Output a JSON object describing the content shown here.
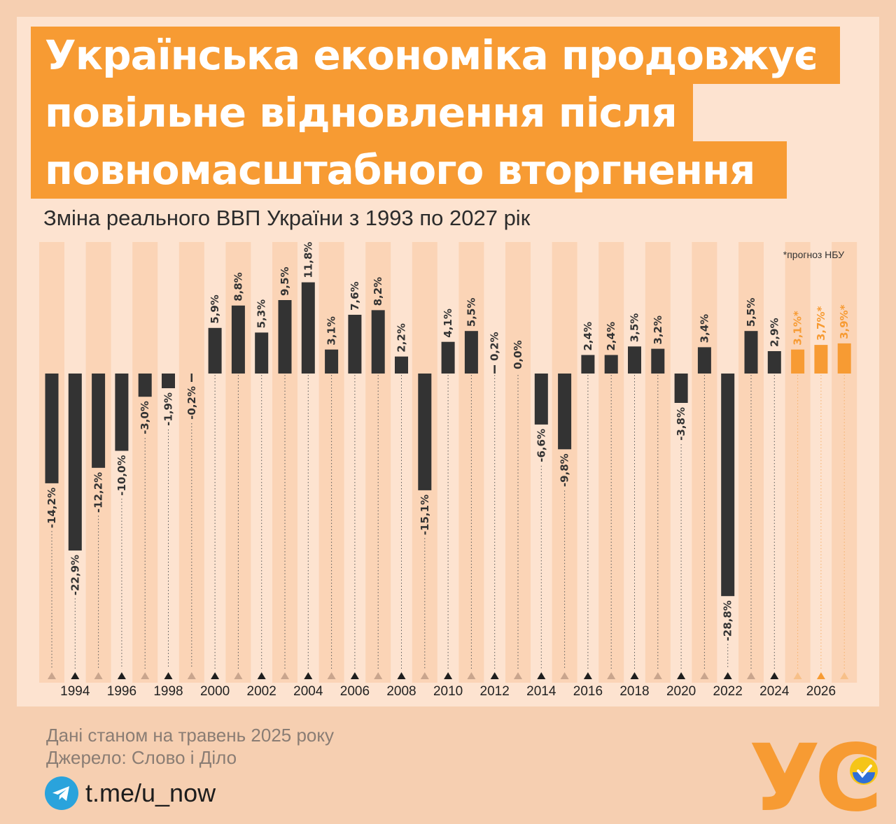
{
  "title_lines": [
    "Українська економіка продовжує",
    "повільне відновлення після",
    "повномасштабного вторгнення"
  ],
  "subtitle": "Зміна реального ВВП України з 1993 по 2027 рік",
  "forecast_note": "*прогноз НБУ",
  "footer": {
    "data_date": "Дані станом на травень 2025 року",
    "source": "Джерело: Слово і Діло",
    "telegram": "t.me/u_now"
  },
  "logo_text": "УС",
  "colors": {
    "background": "#f6cfb1",
    "panel": "#fde3d0",
    "accent": "#f79b33",
    "bar": "#333333",
    "forecast": "#f79b33"
  },
  "chart_data": {
    "type": "bar",
    "years": [
      1993,
      1994,
      1995,
      1996,
      1997,
      1998,
      1999,
      2000,
      2001,
      2002,
      2003,
      2004,
      2005,
      2006,
      2007,
      2008,
      2009,
      2010,
      2011,
      2012,
      2013,
      2014,
      2015,
      2016,
      2017,
      2018,
      2019,
      2020,
      2021,
      2022,
      2023,
      2024,
      2025,
      2026,
      2027
    ],
    "values": [
      -14.2,
      -22.9,
      -12.2,
      -10.0,
      -3.0,
      -1.9,
      -0.2,
      5.9,
      8.8,
      5.3,
      9.5,
      11.8,
      3.1,
      7.6,
      8.2,
      2.2,
      -15.1,
      4.1,
      5.5,
      0.2,
      0.0,
      -6.6,
      -9.8,
      2.4,
      2.4,
      3.5,
      3.2,
      -3.8,
      3.4,
      -28.8,
      5.5,
      2.9,
      3.1,
      3.7,
      3.9
    ],
    "labels": [
      "-14,2%",
      "-22,9%",
      "-12,2%",
      "-10,0%",
      "-3,0%",
      "-1,9%",
      "-0,2%",
      "5,9%",
      "8,8%",
      "5,3%",
      "9,5%",
      "11,8%",
      "3,1%",
      "7,6%",
      "8,2%",
      "2,2%",
      "-15,1%",
      "4,1%",
      "5,5%",
      "0,2%",
      "0,0%",
      "-6,6%",
      "-9,8%",
      "2,4%",
      "2,4%",
      "3,5%",
      "3,2%",
      "-3,8%",
      "3,4%",
      "-28,8%",
      "5,5%",
      "2,9%",
      "3,1%*",
      "3,7%*",
      "3,9%*"
    ],
    "forecast": [
      false,
      false,
      false,
      false,
      false,
      false,
      false,
      false,
      false,
      false,
      false,
      false,
      false,
      false,
      false,
      false,
      false,
      false,
      false,
      false,
      false,
      false,
      false,
      false,
      false,
      false,
      false,
      false,
      false,
      false,
      false,
      false,
      true,
      true,
      true
    ],
    "x_tick_labels": [
      "1994",
      "1996",
      "1998",
      "2000",
      "2002",
      "2004",
      "2006",
      "2008",
      "2010",
      "2012",
      "2014",
      "2016",
      "2018",
      "2020",
      "2022",
      "2024",
      "2026"
    ],
    "unit": "%"
  }
}
